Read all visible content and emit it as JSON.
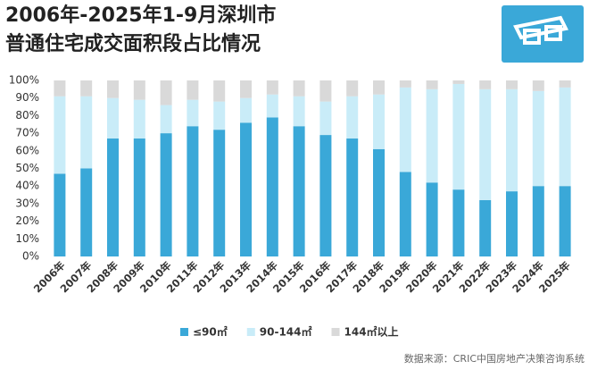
{
  "chart_data": {
    "type": "stacked_bar",
    "title": [
      "2006年-2025年1-9月深圳市",
      "普通住宅成交面积段占比情况"
    ],
    "categories": [
      "2006年",
      "2007年",
      "2008年",
      "2009年",
      "2010年",
      "2011年",
      "2012年",
      "2013年",
      "2014年",
      "2015年",
      "2016年",
      "2017年",
      "2018年",
      "2019年",
      "2020年",
      "2021年",
      "2022年",
      "2023年",
      "2024年",
      "2025年"
    ],
    "series": [
      {
        "name": "≤90㎡",
        "color": "#3aa8d8",
        "values": [
          47,
          50,
          67,
          67,
          70,
          74,
          72,
          76,
          79,
          74,
          69,
          67,
          61,
          48,
          42,
          38,
          32,
          37,
          40,
          40
        ]
      },
      {
        "name": "90-144㎡",
        "color": "#c9ecf8",
        "values": [
          44,
          41,
          23,
          22,
          16,
          15,
          16,
          14,
          13,
          17,
          19,
          24,
          31,
          48,
          53,
          60,
          63,
          58,
          54,
          56
        ]
      },
      {
        "name": "144㎡以上",
        "color": "#d9d9d9",
        "values": [
          9,
          9,
          10,
          11,
          14,
          11,
          12,
          10,
          8,
          9,
          12,
          9,
          8,
          4,
          5,
          2,
          5,
          5,
          6,
          4
        ]
      }
    ],
    "ylim": [
      0,
      100
    ],
    "yticks": [
      {
        "value": 0,
        "label": "0%"
      },
      {
        "value": 10,
        "label": "10%"
      },
      {
        "value": 20,
        "label": "20%"
      },
      {
        "value": 30,
        "label": "30%"
      },
      {
        "value": 40,
        "label": "40%"
      },
      {
        "value": 50,
        "label": "50%"
      },
      {
        "value": 60,
        "label": "60%"
      },
      {
        "value": 70,
        "label": "70%"
      },
      {
        "value": 80,
        "label": "80%"
      },
      {
        "value": 90,
        "label": "90%"
      },
      {
        "value": 100,
        "label": "100%"
      }
    ],
    "source": "数据来源：CRIC中国房地产决策咨询系统"
  }
}
